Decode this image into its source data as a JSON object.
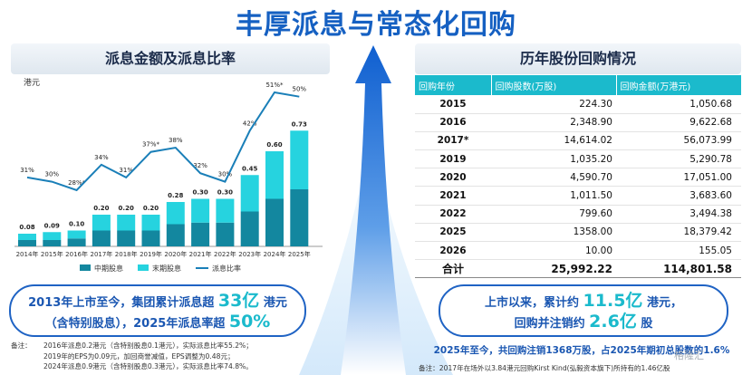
{
  "header": {
    "title": "丰厚派息与常态化回购"
  },
  "left_panel": {
    "title": "派息金额及派息比率",
    "summary_line1_pre": "2013年上市至今，集团累计派息超",
    "summary_line1_big": "33亿",
    "summary_line1_post": "港元",
    "summary_line2_pre": "（含特别股息），2025年派息率超",
    "summary_line2_big": "50%",
    "notes_label": "备注：",
    "notes": [
      "2016年派息0.2港元（含特别股息0.1港元），实际派息比率55.2%；",
      "2019年的EPS为0.09元，加回商誉减值，EPS调整为0.48元；",
      "2024年派息0.9港元（含特别股息0.3港元），实际派息比率74.8%。"
    ]
  },
  "right_panel": {
    "title": "历年股份回购情况",
    "columns": [
      "回购年份",
      "回购股数(万股)",
      "回购金额(万港元)"
    ],
    "rows": [
      {
        "year": "2015",
        "shares": "224.30",
        "amount": "1,050.68"
      },
      {
        "year": "2016",
        "shares": "2,348.90",
        "amount": "9,622.68"
      },
      {
        "year": "2017*",
        "shares": "14,614.02",
        "amount": "56,073.99"
      },
      {
        "year": "2019",
        "shares": "1,035.20",
        "amount": "5,290.78"
      },
      {
        "year": "2020",
        "shares": "4,590.70",
        "amount": "17,051.00"
      },
      {
        "year": "2021",
        "shares": "1,011.50",
        "amount": "3,683.60"
      },
      {
        "year": "2022",
        "shares": "799.60",
        "amount": "3,494.38"
      },
      {
        "year": "2025",
        "shares": "1358.00",
        "amount": "18,379.42"
      },
      {
        "year": "2026",
        "shares": "10.00",
        "amount": "155.05"
      }
    ],
    "total": {
      "label": "合计",
      "shares": "25,992.22",
      "amount": "114,801.58"
    },
    "summary_line1_pre": "上市以来，累计约",
    "summary_line1_big": "11.5亿",
    "summary_line1_post": "港元，",
    "summary_line2_pre": "回购并注销约",
    "summary_line2_big": "2.6亿",
    "summary_line2_post": "股",
    "note_bold": "2025年至今，共回购注销1368万股，占2025年期初总股数的1.6%",
    "note_small": "备注：2017年在场外以3.84港元回购Kirst Kind(弘毅资本旗下)所持有的1.46亿股"
  },
  "watermark": "格隆汇",
  "chart_data": {
    "type": "bar",
    "stacked": true,
    "unit_label": "港元",
    "categories": [
      "2014年",
      "2015年",
      "2016年",
      "2017年",
      "2018年",
      "2019年",
      "2020年",
      "2021年",
      "2022年",
      "2023年",
      "2024年",
      "2025年"
    ],
    "series": [
      {
        "name": "中期股息",
        "color": "#13879f",
        "values": [
          0.04,
          0.04,
          0.05,
          0.1,
          0.1,
          0.1,
          0.14,
          0.15,
          0.15,
          0.22,
          0.3,
          0.36
        ]
      },
      {
        "name": "末期股息",
        "color": "#26d3df",
        "values": [
          0.04,
          0.05,
          0.05,
          0.1,
          0.1,
          0.1,
          0.14,
          0.15,
          0.15,
          0.23,
          0.3,
          0.37
        ]
      }
    ],
    "totals": [
      "0.08",
      "0.09",
      "0.10",
      "0.20",
      "0.20",
      "0.20",
      "0.28",
      "0.30",
      "0.30",
      "0.45",
      "0.60",
      "0.73"
    ],
    "ratio_series": {
      "name": "派息比率",
      "color": "#1a7fb8",
      "values": [
        31,
        30,
        28,
        34,
        31,
        37,
        38,
        32,
        30,
        42,
        51,
        50
      ]
    },
    "ratio_labels": [
      "31%",
      "30%",
      "28%*",
      "34%",
      "31%",
      "37%*",
      "38%",
      "32%",
      "30%",
      "42%",
      "51%*",
      "50%"
    ],
    "ylim": [
      0,
      0.8
    ],
    "ratio_lim": [
      0,
      60
    ],
    "legend": [
      "中期股息",
      "末期股息",
      "派息比率"
    ]
  }
}
